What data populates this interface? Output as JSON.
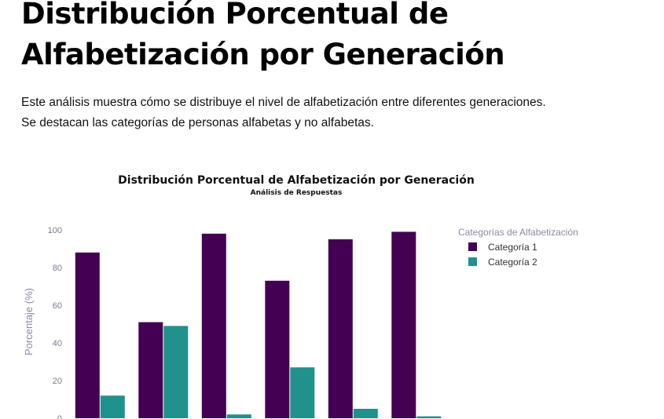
{
  "page": {
    "title": "Distribución Porcentual de Alfabetización por Generación",
    "intro": "Este análisis muestra cómo se distribuye el nivel de alfabetización entre diferentes generaciones. Se destacan las categorías de personas alfabetas y no alfabetas."
  },
  "chart_data": {
    "type": "bar",
    "title": "Distribución Porcentual de Alfabetización por Generación",
    "subtitle": "Análisis de Respuestas",
    "xlabel": "",
    "ylabel": "Porcentaje (%)",
    "ylim": [
      0,
      100
    ],
    "yticks": [
      0,
      20,
      40,
      60,
      80,
      100
    ],
    "grid": false,
    "legend": {
      "title": "Categorías de Alfabetización",
      "placement": "top-right"
    },
    "categories": [
      "",
      "",
      "",
      "",
      "",
      ""
    ],
    "series": [
      {
        "name": "Categoría 1",
        "color": "#440154",
        "values": [
          88,
          51,
          98,
          73,
          95,
          99
        ]
      },
      {
        "name": "Categoría 2",
        "color": "#21918c",
        "values": [
          12,
          49,
          2,
          27,
          5,
          1
        ]
      }
    ]
  }
}
